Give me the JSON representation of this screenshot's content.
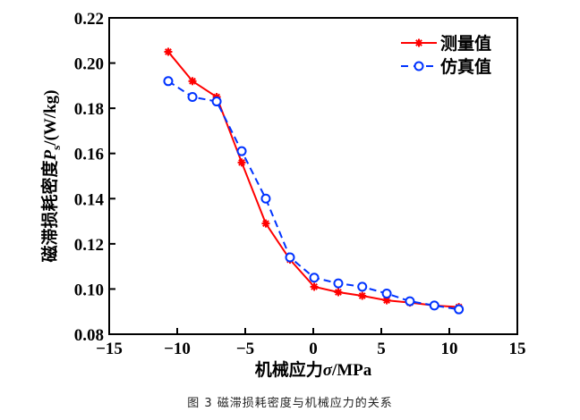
{
  "chart_data": {
    "type": "line",
    "title": "",
    "xlabel": "机械应力σ/MPa",
    "ylabel": "磁滞损耗密度P_s/(W/kg)",
    "xlim": [
      -15,
      15
    ],
    "ylim": [
      0.08,
      0.22
    ],
    "xticks": [
      "−15",
      "−10",
      "−5",
      "0",
      "5",
      "10",
      "15"
    ],
    "xtick_values": [
      -15,
      -10,
      -5,
      0,
      5,
      10,
      15
    ],
    "yticks": [
      "0.08",
      "0.10",
      "0.12",
      "0.14",
      "0.16",
      "0.18",
      "0.20",
      "0.22"
    ],
    "ytick_values": [
      0.08,
      0.1,
      0.12,
      0.14,
      0.16,
      0.18,
      0.2,
      0.22
    ],
    "grid": false,
    "legend_position": "top-right",
    "series": [
      {
        "name": "测量值",
        "color": "#ff0000",
        "marker": "asterisk",
        "linestyle": "solid",
        "x": [
          -10.66,
          -8.88,
          -7.1,
          -5.26,
          -3.49,
          -1.71,
          0.07,
          1.84,
          3.6,
          5.4,
          7.1,
          8.9,
          10.7
        ],
        "y": [
          0.205,
          0.192,
          0.185,
          0.156,
          0.129,
          0.113,
          0.101,
          0.0986,
          0.097,
          0.095,
          0.094,
          0.0927,
          0.092
        ]
      },
      {
        "name": "仿真值",
        "color": "#0033ff",
        "marker": "circle",
        "linestyle": "dashed",
        "x": [
          -10.66,
          -8.88,
          -7.1,
          -5.26,
          -3.49,
          -1.71,
          0.07,
          1.84,
          3.6,
          5.4,
          7.1,
          8.9,
          10.7
        ],
        "y": [
          0.192,
          0.185,
          0.183,
          0.161,
          0.14,
          0.114,
          0.105,
          0.1025,
          0.101,
          0.098,
          0.0946,
          0.0927,
          0.091
        ]
      }
    ]
  },
  "ylabel_parts": {
    "prefix": "磁滞损耗密度",
    "var": "P",
    "sub": "s",
    "unit": "/(W/kg)"
  },
  "xlabel_parts": {
    "prefix": "机械应力",
    "var": "σ",
    "unit": "/MPa"
  },
  "caption": "图 3  磁滞损耗密度与机械应力的关系"
}
